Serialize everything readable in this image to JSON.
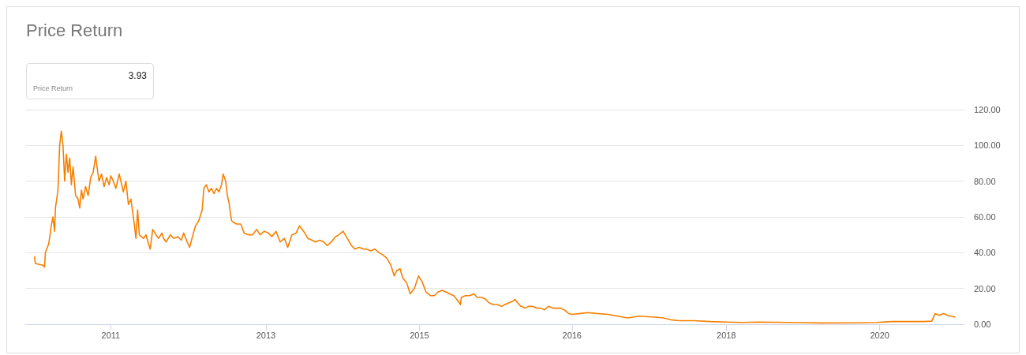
{
  "chart_data": {
    "type": "line",
    "title": "Price Return",
    "annotations": [
      "3.93",
      "Price Return"
    ],
    "x": [
      2010.0,
      2010.01,
      2010.1,
      2010.12,
      2010.13,
      2010.17,
      2010.2,
      2010.22,
      2010.24,
      2010.25,
      2010.28,
      2010.3,
      2010.32,
      2010.34,
      2010.36,
      2010.38,
      2010.4,
      2010.42,
      2010.44,
      2010.46,
      2010.49,
      2010.52,
      2010.54,
      2010.56,
      2010.58,
      2010.61,
      2010.64,
      2010.67,
      2010.7,
      2010.73,
      2010.74,
      2010.77,
      2010.8,
      2010.83,
      2010.86,
      2010.89,
      2010.91,
      2010.94,
      2010.97,
      2011.01,
      2011.03,
      2011.06,
      2011.09,
      2011.12,
      2011.15,
      2011.19,
      2011.21,
      2011.23,
      2011.25,
      2011.3,
      2011.33,
      2011.36,
      2011.38,
      2011.41,
      2011.45,
      2011.48,
      2011.52,
      2011.54,
      2011.57,
      2011.62,
      2011.66,
      2011.71,
      2011.75,
      2011.78,
      2011.82,
      2011.85,
      2011.89,
      2011.92,
      2011.96,
      2012.0,
      2012.02,
      2012.05,
      2012.08,
      2012.11,
      2012.14,
      2012.17,
      2012.2,
      2012.23,
      2012.25,
      2012.28,
      2012.3,
      2012.32,
      2012.33,
      2012.35,
      2012.37,
      2012.41,
      2012.46,
      2012.5,
      2012.55,
      2012.6,
      2012.65,
      2012.69,
      2012.74,
      2012.79,
      2012.83,
      2012.88,
      2012.93,
      2012.98,
      2013.02,
      2013.07,
      2013.12,
      2013.16,
      2013.21,
      2013.26,
      2013.31,
      2013.35,
      2013.4,
      2013.45,
      2013.49,
      2013.54,
      2013.59,
      2013.63,
      2013.68,
      2013.73,
      2013.78,
      2013.82,
      2013.87,
      2013.92,
      2013.96,
      2014.01,
      2014.06,
      2014.11,
      2014.15,
      2014.2,
      2014.25,
      2014.29,
      2014.32,
      2014.36,
      2014.39,
      2014.44,
      2014.48,
      2014.53,
      2014.58,
      2014.62,
      2014.67,
      2014.72,
      2014.77,
      2014.81,
      2014.86,
      2014.91,
      2014.95,
      2015.0,
      2015.05,
      2015.08,
      2015.09,
      2015.14,
      2015.19,
      2015.24,
      2015.28,
      2015.33,
      2015.38,
      2015.42,
      2015.47,
      2015.52,
      2015.57,
      2015.61,
      2015.66,
      2015.71,
      2015.73,
      2015.76,
      2015.8,
      2015.85,
      2015.89,
      2015.94,
      2015.99,
      2016.04,
      2016.08,
      2016.13,
      2016.18,
      2016.27,
      2016.32,
      2016.37,
      2016.41,
      2016.51,
      2016.6,
      2016.7,
      2016.84,
      2017.02,
      2017.07,
      2017.21,
      2017.4,
      2017.5,
      2017.59,
      2017.68,
      2017.87,
      2018.06,
      2018.25,
      2018.44,
      2018.63,
      2019.0,
      2019.38,
      2019.76,
      2020.04,
      2020.23,
      2020.6,
      2020.7,
      2020.74,
      2020.79,
      2020.84,
      2020.89,
      2020.93,
      2020.98
    ],
    "series": [
      {
        "color": "#f77f00",
        "values": [
          38,
          34,
          33,
          32,
          40,
          45,
          55,
          60,
          52,
          65,
          75,
          100,
          108,
          100,
          80,
          95,
          85,
          93,
          78,
          88,
          72,
          70,
          65,
          75,
          70,
          77,
          72,
          82,
          85,
          94,
          90,
          80,
          84,
          77,
          82,
          78,
          83,
          80,
          76,
          84,
          80,
          74,
          80,
          67,
          70,
          56,
          48,
          64,
          50,
          48,
          50,
          45,
          42,
          53,
          50,
          48,
          51,
          48,
          46,
          50,
          48,
          49,
          47,
          51,
          46,
          43,
          50,
          55,
          58,
          64,
          76,
          78,
          74,
          76,
          73,
          76,
          74,
          78,
          84,
          80,
          72,
          68,
          64,
          58,
          57,
          56,
          56,
          51,
          50,
          50,
          53,
          50,
          52,
          51,
          49,
          52,
          46,
          48,
          43,
          50,
          51,
          55,
          52,
          48,
          47,
          46,
          47,
          46,
          44,
          46,
          49,
          50,
          52,
          48,
          44,
          42,
          43,
          42,
          42,
          41,
          42,
          40,
          39,
          37,
          33,
          27,
          30,
          31,
          26,
          23,
          17,
          20,
          27,
          24,
          18,
          16,
          16,
          18,
          19,
          18,
          17,
          16,
          13,
          11,
          15,
          16,
          16,
          17,
          15,
          15,
          14,
          12,
          11,
          11,
          10,
          11,
          12,
          13,
          14,
          12,
          10,
          9,
          10,
          10,
          9,
          9,
          8,
          10,
          9,
          9,
          8,
          6,
          5.5,
          6,
          6.5,
          6,
          5.5,
          4,
          3.5,
          4.5,
          4,
          3.5,
          2.5,
          2,
          2,
          1.5,
          1.2,
          1,
          1.2,
          1,
          0.7,
          0.8,
          1,
          1.5,
          1.5,
          1.7,
          6,
          5,
          6,
          5,
          4.5,
          3.93
        ]
      }
    ],
    "xlim": [
      2009.89,
      2021.09
    ],
    "xticks": [
      {
        "value": 2010.91,
        "label": "2011"
      },
      {
        "value": 2012.76,
        "label": "2013"
      },
      {
        "value": 2014.59,
        "label": "2015"
      },
      {
        "value": 2016.41,
        "label": "2016"
      },
      {
        "value": 2018.25,
        "label": "2018"
      },
      {
        "value": 2020.08,
        "label": "2020"
      }
    ],
    "ylim": [
      0,
      120
    ],
    "yticks": [
      {
        "value": 0,
        "label": "0.00"
      },
      {
        "value": 20,
        "label": "20.00"
      },
      {
        "value": 40,
        "label": "40.00"
      },
      {
        "value": 60,
        "label": "60.00"
      },
      {
        "value": 80,
        "label": "80.00"
      },
      {
        "value": 100,
        "label": "100.00"
      },
      {
        "value": 120,
        "label": "120.00"
      }
    ],
    "grid": "y",
    "line_style": "solid",
    "marker": "none"
  }
}
